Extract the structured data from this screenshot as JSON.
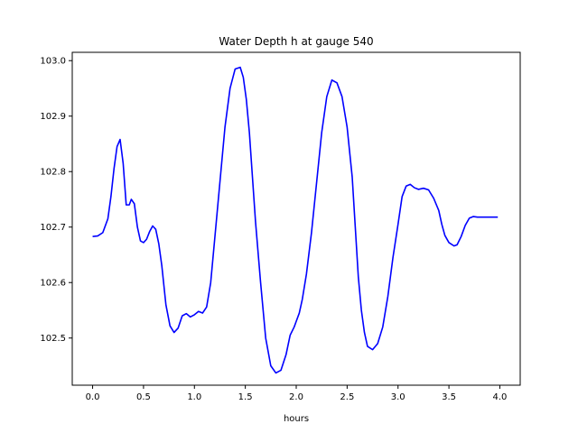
{
  "chart_data": {
    "type": "line",
    "title": "Water Depth h at gauge 540",
    "xlabel": "hours",
    "ylabel": "",
    "xlim": [
      -0.2,
      4.2
    ],
    "ylim": [
      102.415,
      103.015
    ],
    "xticks": [
      0.0,
      0.5,
      1.0,
      1.5,
      2.0,
      2.5,
      3.0,
      3.5,
      4.0
    ],
    "xtick_labels": [
      "0.0",
      "0.5",
      "1.0",
      "1.5",
      "2.0",
      "2.5",
      "3.0",
      "3.5",
      "4.0"
    ],
    "yticks": [
      102.5,
      102.6,
      102.7,
      102.8,
      102.9,
      103.0
    ],
    "ytick_labels": [
      "102.5",
      "102.6",
      "102.7",
      "102.8",
      "102.9",
      "103.0"
    ],
    "grid": false,
    "series": [
      {
        "color": "#0000ff",
        "x": [
          0.0,
          0.05,
          0.1,
          0.15,
          0.18,
          0.21,
          0.24,
          0.27,
          0.3,
          0.33,
          0.36,
          0.38,
          0.41,
          0.44,
          0.47,
          0.5,
          0.53,
          0.56,
          0.59,
          0.62,
          0.65,
          0.68,
          0.72,
          0.76,
          0.8,
          0.84,
          0.88,
          0.92,
          0.96,
          1.0,
          1.04,
          1.08,
          1.12,
          1.16,
          1.2,
          1.25,
          1.3,
          1.35,
          1.4,
          1.45,
          1.48,
          1.51,
          1.54,
          1.57,
          1.6,
          1.65,
          1.7,
          1.75,
          1.8,
          1.85,
          1.9,
          1.94,
          1.98,
          2.0,
          2.03,
          2.06,
          2.1,
          2.15,
          2.2,
          2.25,
          2.3,
          2.35,
          2.4,
          2.45,
          2.5,
          2.55,
          2.58,
          2.61,
          2.64,
          2.67,
          2.7,
          2.75,
          2.8,
          2.85,
          2.9,
          2.95,
          3.0,
          3.04,
          3.08,
          3.12,
          3.16,
          3.2,
          3.25,
          3.3,
          3.35,
          3.4,
          3.43,
          3.46,
          3.5,
          3.55,
          3.58,
          3.62,
          3.66,
          3.7,
          3.74,
          3.78,
          3.82,
          3.86,
          3.9,
          3.94,
          3.98
        ],
        "y": [
          102.683,
          102.684,
          102.69,
          102.715,
          102.755,
          102.805,
          102.845,
          102.858,
          102.815,
          102.74,
          102.74,
          102.75,
          102.742,
          102.7,
          102.675,
          102.672,
          102.678,
          102.692,
          102.702,
          102.696,
          102.67,
          102.63,
          102.56,
          102.522,
          102.51,
          102.518,
          102.54,
          102.544,
          102.538,
          102.542,
          102.548,
          102.545,
          102.556,
          102.6,
          102.68,
          102.78,
          102.88,
          102.95,
          102.985,
          102.988,
          102.97,
          102.93,
          102.87,
          102.79,
          102.71,
          102.6,
          102.5,
          102.45,
          102.437,
          102.442,
          102.47,
          102.505,
          102.52,
          102.53,
          102.545,
          102.57,
          102.615,
          102.69,
          102.78,
          102.87,
          102.935,
          102.965,
          102.96,
          102.935,
          102.88,
          102.79,
          102.7,
          102.61,
          102.55,
          102.51,
          102.485,
          102.479,
          102.49,
          102.52,
          102.575,
          102.645,
          102.705,
          102.755,
          102.774,
          102.777,
          102.771,
          102.768,
          102.77,
          102.767,
          102.752,
          102.73,
          102.705,
          102.685,
          102.672,
          102.666,
          102.668,
          102.683,
          102.703,
          102.716,
          102.719,
          102.718,
          102.718,
          102.718,
          102.718,
          102.718,
          102.718
        ]
      }
    ]
  }
}
